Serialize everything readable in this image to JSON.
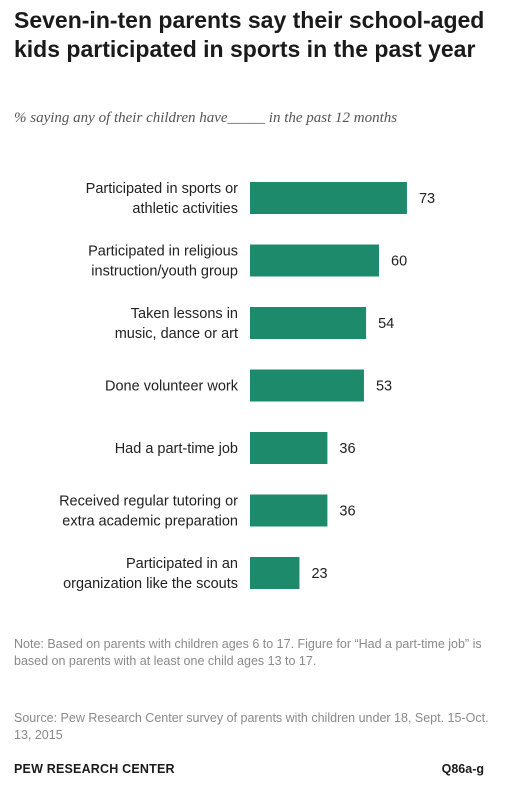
{
  "chart_data": {
    "type": "bar",
    "orientation": "horizontal",
    "title": "Seven-in-ten parents say their school-aged kids participated in sports in the past year",
    "subtitle": "% saying any of their children have_____ in the past 12 months",
    "categories": [
      [
        "Participated in sports or",
        "athletic activities"
      ],
      [
        "Participated in religious",
        "instruction/youth group"
      ],
      [
        "Taken lessons in",
        "music, dance or art"
      ],
      [
        "Done volunteer work"
      ],
      [
        "Had a part-time job"
      ],
      [
        "Received regular tutoring or",
        "extra academic preparation"
      ],
      [
        "Participated in an",
        "organization like the scouts"
      ]
    ],
    "values": [
      73,
      60,
      54,
      53,
      36,
      36,
      23
    ],
    "value_labels": [
      "73",
      "60",
      "54",
      "53",
      "36",
      "36",
      "23"
    ],
    "xlim": [
      0,
      100
    ],
    "bar_color": "#1e8a6c",
    "grid": false,
    "legend": "none"
  },
  "note": "Note: Based on parents with children ages 6 to 17. Figure for “Had a part-time job” is based on parents with at least one child ages 13 to 17.",
  "source": "Source: Pew Research Center survey of parents with children under 18, Sept. 15-Oct. 13, 2015",
  "footer": {
    "brand": "PEW RESEARCH CENTER",
    "code": "Q86a-g"
  }
}
